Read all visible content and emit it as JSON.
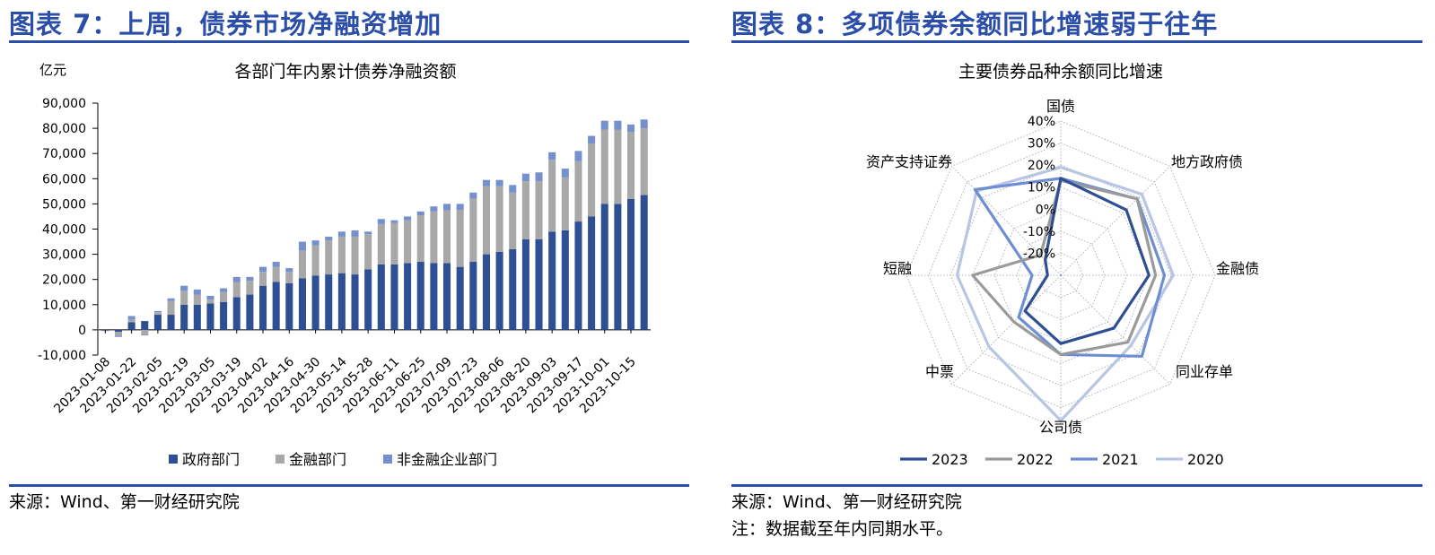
{
  "left": {
    "figure_title": "图表 7：上周，债券市场净融资增加",
    "source": "来源：Wind、第一财经研究院"
  },
  "right": {
    "figure_title": "图表 8：多项债券余额同比增速弱于往年",
    "source": "来源：Wind、第一财经研究院",
    "note": "注：数据截至年内同期水平。"
  },
  "colors": {
    "brand": "#2b4ea8",
    "gov": "#2f4f94",
    "fin": "#a8a8a8",
    "nonfin": "#7590cc",
    "s2023": "#2f4f94",
    "s2022": "#9a9a9a",
    "s2021": "#6d8ed4",
    "s2020": "#b8c5e3"
  },
  "chart_data": [
    {
      "type": "bar",
      "stacked": true,
      "title": "各部门年内累计债券净融资额",
      "ylabel": "亿元",
      "ylim": [
        -10000,
        90000
      ],
      "yticks": [
        "-10,000",
        "0",
        "10,000",
        "20,000",
        "30,000",
        "40,000",
        "50,000",
        "60,000",
        "70,000",
        "80,000",
        "90,000"
      ],
      "ytick_values": [
        -10000,
        0,
        10000,
        20000,
        30000,
        40000,
        50000,
        60000,
        70000,
        80000,
        90000
      ],
      "grid": false,
      "legend_position": "bottom",
      "xtick_labels": [
        "2023-01-08",
        "2023-01-22",
        "2023-02-05",
        "2023-02-19",
        "2023-03-05",
        "2023-03-19",
        "2023-04-02",
        "2023-04-16",
        "2023-04-30",
        "2023-05-14",
        "2023-05-28",
        "2023-06-11",
        "2023-06-25",
        "2023-07-09",
        "2023-07-23",
        "2023-08-06",
        "2023-08-20",
        "2023-09-03",
        "2023-09-17",
        "2023-10-01",
        "2023-10-15"
      ],
      "series": [
        {
          "name": "政府部门",
          "values": [
            -200,
            -800,
            3000,
            3500,
            6000,
            6000,
            10000,
            10000,
            10500,
            11000,
            13000,
            14000,
            17500,
            19000,
            18500,
            20500,
            21500,
            22000,
            22500,
            22000,
            24000,
            26000,
            26000,
            26500,
            27000,
            26500,
            26500,
            25000,
            27000,
            30000,
            31000,
            32000,
            36000,
            36000,
            39000,
            39500,
            43000,
            45000,
            50000,
            50000,
            52000,
            53500
          ]
        },
        {
          "name": "金融部门",
          "values": [
            -300,
            -1500,
            1000,
            -2000,
            1000,
            5500,
            5500,
            4000,
            1500,
            4000,
            6000,
            5500,
            5500,
            6000,
            4500,
            11000,
            12000,
            13500,
            14500,
            15000,
            14000,
            16000,
            16500,
            17000,
            18500,
            20500,
            21000,
            22500,
            25000,
            27000,
            26000,
            22500,
            23000,
            23000,
            28500,
            21000,
            24000,
            29000,
            29500,
            29500,
            26500,
            26500
          ]
        },
        {
          "name": "非金融企业部门",
          "values": [
            0,
            -500,
            1500,
            -200,
            500,
            1000,
            2000,
            2000,
            1500,
            1500,
            2000,
            1500,
            2000,
            2000,
            1500,
            3500,
            2000,
            1500,
            2000,
            2500,
            1000,
            2000,
            1000,
            1500,
            1500,
            2000,
            2500,
            2500,
            2500,
            2500,
            2500,
            3000,
            3000,
            3500,
            3000,
            3500,
            4000,
            3000,
            3500,
            3500,
            3000,
            3500
          ]
        }
      ]
    },
    {
      "type": "radar",
      "title": "主要债券品种余额同比增速",
      "categories": [
        "国债",
        "地方政府债",
        "金融债",
        "同业存单",
        "公司债",
        "中票",
        "短融",
        "资产支持证券"
      ],
      "rlim": [
        -0.3,
        0.4
      ],
      "rticks": [
        "40%",
        "30%",
        "20%",
        "10%",
        "0%",
        "-10%",
        "-20%"
      ],
      "rtick_values": [
        0.4,
        0.3,
        0.2,
        0.1,
        0.0,
        -0.1,
        -0.2
      ],
      "legend_position": "bottom",
      "series": [
        {
          "name": "2023",
          "values": [
            0.14,
            0.12,
            0.1,
            0.04,
            0.01,
            -0.07,
            -0.24,
            -0.2
          ]
        },
        {
          "name": "2022",
          "values": [
            0.13,
            0.19,
            0.13,
            0.13,
            0.06,
            0.0,
            0.1,
            -0.17
          ]
        },
        {
          "name": "2021",
          "values": [
            0.14,
            0.19,
            0.17,
            0.22,
            0.06,
            -0.03,
            -0.17,
            0.25
          ]
        },
        {
          "name": "2020",
          "values": [
            0.19,
            0.22,
            0.21,
            0.15,
            0.36,
            0.16,
            0.17,
            0.24
          ]
        }
      ]
    }
  ]
}
